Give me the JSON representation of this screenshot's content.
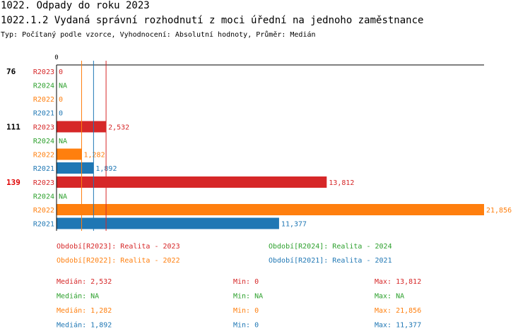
{
  "header": {
    "title": "1022. Odpady do roku 2023",
    "subtitle": "1022.1.2 Vydaná správní rozhodnutí z moci úřední na jednoho zaměstnance",
    "info": "Typ: Počítaný podle vzorce, Vyhodnocení: Absolutní hodnoty, Průměr: Medián"
  },
  "chart_data": {
    "type": "bar",
    "orientation": "horizontal",
    "axis_zero_label": "0",
    "xlim": [
      0,
      21856
    ],
    "colors": {
      "R2023": "#d62728",
      "R2024": "#2ca02c",
      "R2022": "#ff7f0e",
      "R2021": "#1f77b4",
      "highlight": "#e00000"
    },
    "medians": {
      "R2023": 2532,
      "R2022": 1282,
      "R2021": 1892
    },
    "groups": [
      {
        "label": "76",
        "highlight": false,
        "rows": [
          {
            "series": "R2023",
            "value": 0,
            "label": "0"
          },
          {
            "series": "R2024",
            "value": null,
            "label": "NA"
          },
          {
            "series": "R2022",
            "value": 0,
            "label": "0"
          },
          {
            "series": "R2021",
            "value": 0,
            "label": "0"
          }
        ]
      },
      {
        "label": "111",
        "highlight": false,
        "rows": [
          {
            "series": "R2023",
            "value": 2532,
            "label": "2,532"
          },
          {
            "series": "R2024",
            "value": null,
            "label": "NA"
          },
          {
            "series": "R2022",
            "value": 1282,
            "label": "1,282"
          },
          {
            "series": "R2021",
            "value": 1892,
            "label": "1,892"
          }
        ]
      },
      {
        "label": "139",
        "highlight": true,
        "rows": [
          {
            "series": "R2023",
            "value": 13812,
            "label": "13,812"
          },
          {
            "series": "R2024",
            "value": null,
            "label": "NA"
          },
          {
            "series": "R2022",
            "value": 21856,
            "label": "21,856"
          },
          {
            "series": "R2021",
            "value": 11377,
            "label": "11,377"
          }
        ]
      }
    ],
    "legend": [
      {
        "series": "R2023",
        "text": "Období[R2023]: Realita - 2023"
      },
      {
        "series": "R2024",
        "text": "Období[R2024]: Realita - 2024"
      },
      {
        "series": "R2022",
        "text": "Období[R2022]: Realita - 2022"
      },
      {
        "series": "R2021",
        "text": "Období[R2021]: Realita - 2021"
      }
    ],
    "stats": [
      {
        "series": "R2023",
        "median": "Medián: 2,532",
        "min": "Min: 0",
        "max": "Max: 13,812"
      },
      {
        "series": "R2024",
        "median": "Medián: NA",
        "min": "Min: NA",
        "max": "Max: NA"
      },
      {
        "series": "R2022",
        "median": "Medián: 1,282",
        "min": "Min: 0",
        "max": "Max: 21,856"
      },
      {
        "series": "R2021",
        "median": "Medián: 1,892",
        "min": "Min: 0",
        "max": "Max: 11,377"
      }
    ]
  }
}
